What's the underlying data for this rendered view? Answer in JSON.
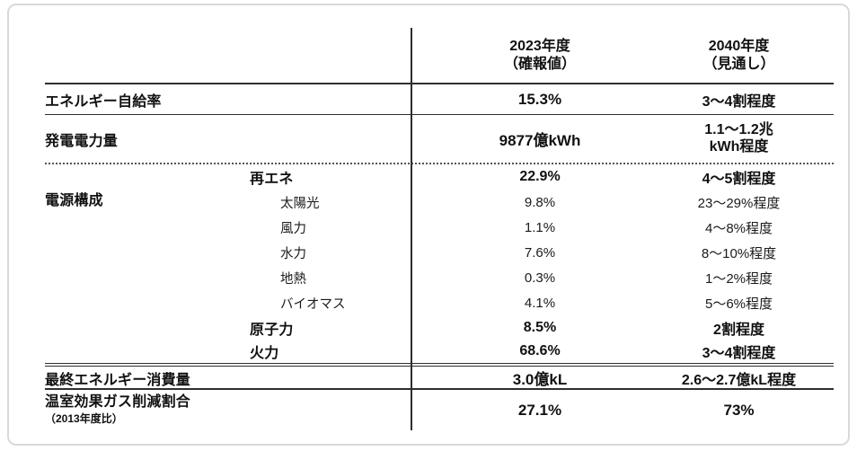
{
  "card": {
    "header": {
      "col2023": {
        "line1": "2023年度",
        "line2": "（確報値）"
      },
      "col2040": {
        "line1": "2040年度",
        "line2": "（見通し）"
      }
    },
    "rows": {
      "self_sufficiency": {
        "label": "エネルギー自給率",
        "v2023": "15.3%",
        "v2040": "3～4割程度"
      },
      "generation": {
        "label": "発電電力量",
        "v2023": "9877億kWh",
        "v2040_line1": "1.1～1.2兆",
        "v2040_line2": "kWh程度"
      },
      "mix": {
        "label": "電源構成",
        "renewables": {
          "label": "再エネ",
          "v2023": "22.9%",
          "v2040": "4～5割程度"
        },
        "solar": {
          "label": "太陽光",
          "v2023": "9.8%",
          "v2040": "23～29%程度"
        },
        "wind": {
          "label": "風力",
          "v2023": "1.1%",
          "v2040": "4～8%程度"
        },
        "hydro": {
          "label": "水力",
          "v2023": "7.6%",
          "v2040": "8～10%程度"
        },
        "geothermal": {
          "label": "地熱",
          "v2023": "0.3%",
          "v2040": "1～2%程度"
        },
        "biomass": {
          "label": "バイオマス",
          "v2023": "4.1%",
          "v2040": "5～6%程度"
        },
        "nuclear": {
          "label": "原子力",
          "v2023": "8.5%",
          "v2040": "2割程度"
        },
        "thermal": {
          "label": "火力",
          "v2023": "68.6%",
          "v2040": "3～4割程度"
        }
      },
      "final_consumption": {
        "label": "最終エネルギー消費量",
        "v2023": "3.0億kL",
        "v2040": "2.6～2.7億kL程度"
      },
      "ghg_reduction": {
        "label": "温室効果ガス削減割合",
        "sublabel": "（2013年度比）",
        "v2023": "27.1%",
        "v2040": "73%"
      }
    },
    "colors": {
      "text": "#111111",
      "line": "#2e2e2e",
      "card_border": "#d9d9d9"
    }
  }
}
